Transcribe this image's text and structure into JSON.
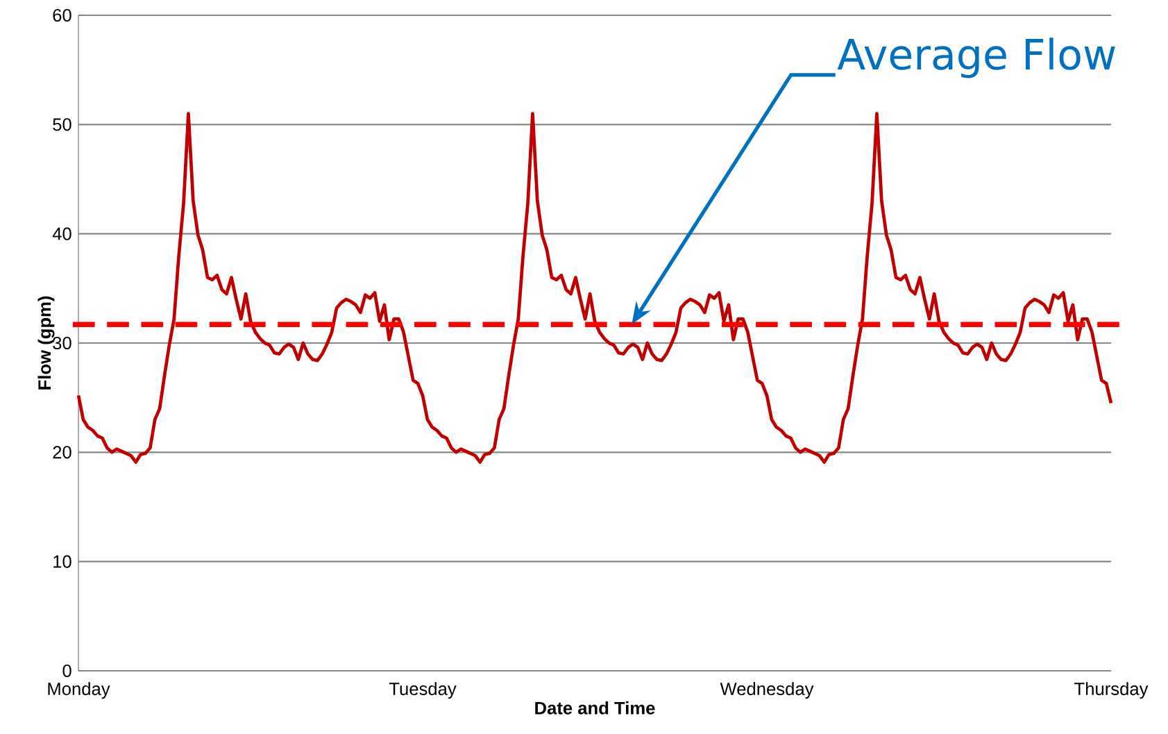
{
  "chart_data": {
    "type": "line",
    "xlabel": "Date and Time",
    "ylabel": "Flow (gpm)",
    "categories": [
      "Monday",
      null,
      null,
      null,
      null,
      null,
      null,
      null,
      null,
      null,
      null,
      null,
      null,
      null,
      null,
      null,
      null,
      null,
      null,
      null,
      null,
      null,
      null,
      null,
      null,
      null,
      null,
      null,
      null,
      null,
      null,
      null,
      null,
      null,
      null,
      null,
      null,
      null,
      null,
      null,
      null,
      null,
      null,
      null,
      null,
      null,
      null,
      null,
      null,
      null,
      null,
      null,
      null,
      null,
      null,
      null,
      null,
      null,
      null,
      null,
      null,
      null,
      null,
      null,
      null,
      null,
      null,
      null,
      null,
      null,
      null,
      null,
      "Tuesday",
      null,
      null,
      null,
      null,
      null,
      null,
      null,
      null,
      null,
      null,
      null,
      null,
      null,
      null,
      null,
      null,
      null,
      null,
      null,
      null,
      null,
      null,
      null,
      null,
      null,
      null,
      null,
      null,
      null,
      null,
      null,
      null,
      null,
      null,
      null,
      null,
      null,
      null,
      null,
      null,
      null,
      null,
      null,
      null,
      null,
      null,
      null,
      null,
      null,
      null,
      null,
      null,
      null,
      null,
      null,
      null,
      null,
      null,
      null,
      null,
      null,
      null,
      null,
      null,
      null,
      null,
      null,
      null,
      null,
      null,
      null,
      "Wednesday",
      null,
      null,
      null,
      null,
      null,
      null,
      null,
      null,
      null,
      null,
      null,
      null,
      null,
      null,
      null,
      null,
      null,
      null,
      null,
      null,
      null,
      null,
      null,
      null,
      null,
      null,
      null,
      null,
      null,
      null,
      null,
      null,
      null,
      null,
      null,
      null,
      null,
      null,
      null,
      null,
      null,
      null,
      null,
      null,
      null,
      null,
      null,
      null,
      null,
      null,
      null,
      null,
      null,
      null,
      null,
      null,
      null,
      null,
      null,
      null,
      null,
      null,
      null,
      null,
      null,
      null,
      null,
      null,
      null,
      null,
      null,
      "Thursday"
    ],
    "series": [
      {
        "color": "#c00000",
        "values": [
          25.2,
          23.0,
          22.3,
          22.0,
          21.5,
          21.3,
          20.4,
          20.0,
          20.3,
          20.1,
          19.9,
          19.7,
          19.1,
          19.8,
          19.9,
          20.4,
          23.0,
          24.0,
          27.0,
          29.8,
          32.2,
          38.0,
          42.8,
          51.0,
          43.0,
          39.9,
          38.5,
          36.0,
          35.8,
          36.2,
          34.9,
          34.5,
          36.0,
          34.0,
          32.2,
          34.5,
          32.0,
          31.0,
          30.4,
          30.0,
          29.8,
          29.1,
          29.0,
          29.6,
          29.9,
          29.6,
          28.5,
          30.0,
          29.0,
          28.5,
          28.4,
          29.0,
          29.9,
          31.0,
          33.2,
          33.7,
          34.0,
          33.8,
          33.5,
          32.8,
          34.4,
          34.1,
          34.6,
          32.0,
          33.5,
          30.3,
          32.2,
          32.2,
          31.0,
          28.8,
          26.6,
          26.3,
          25.2,
          23.0,
          22.3,
          22.0,
          21.5,
          21.3,
          20.4,
          20.0,
          20.3,
          20.1,
          19.9,
          19.7,
          19.1,
          19.8,
          19.9,
          20.4,
          23.0,
          24.0,
          27.0,
          29.8,
          32.2,
          38.0,
          42.8,
          51.0,
          43.0,
          39.9,
          38.5,
          36.0,
          35.8,
          36.2,
          34.9,
          34.5,
          36.0,
          34.0,
          32.2,
          34.5,
          32.0,
          31.0,
          30.4,
          30.0,
          29.8,
          29.1,
          29.0,
          29.6,
          29.9,
          29.6,
          28.5,
          30.0,
          29.0,
          28.5,
          28.4,
          29.0,
          29.9,
          31.0,
          33.2,
          33.7,
          34.0,
          33.8,
          33.5,
          32.8,
          34.4,
          34.1,
          34.6,
          32.0,
          33.5,
          30.3,
          32.2,
          32.2,
          31.0,
          28.8,
          26.6,
          26.3,
          25.2,
          23.0,
          22.3,
          22.0,
          21.5,
          21.3,
          20.4,
          20.0,
          20.3,
          20.1,
          19.9,
          19.7,
          19.1,
          19.8,
          19.9,
          20.4,
          23.0,
          24.0,
          27.0,
          29.8,
          32.2,
          38.0,
          42.8,
          51.0,
          43.0,
          39.9,
          38.5,
          36.0,
          35.8,
          36.2,
          34.9,
          34.5,
          36.0,
          34.0,
          32.2,
          34.5,
          32.0,
          31.0,
          30.4,
          30.0,
          29.8,
          29.1,
          29.0,
          29.6,
          29.9,
          29.6,
          28.5,
          30.0,
          29.0,
          28.5,
          28.4,
          29.0,
          29.9,
          31.0,
          33.2,
          33.7,
          34.0,
          33.8,
          33.5,
          32.8,
          34.4,
          34.1,
          34.6,
          32.0,
          33.5,
          30.3,
          32.2,
          32.2,
          31.0,
          28.8,
          26.6,
          26.3,
          24.5
        ]
      }
    ],
    "ylim": [
      0,
      60
    ],
    "yticks": [
      0,
      10,
      20,
      30,
      40,
      50,
      60
    ],
    "grid": "y",
    "ref_lines": [
      {
        "axis": "y",
        "value": 31.7,
        "color": "#ff0000",
        "line_style": "dashed"
      }
    ],
    "annotations": [
      "Average Flow"
    ]
  }
}
